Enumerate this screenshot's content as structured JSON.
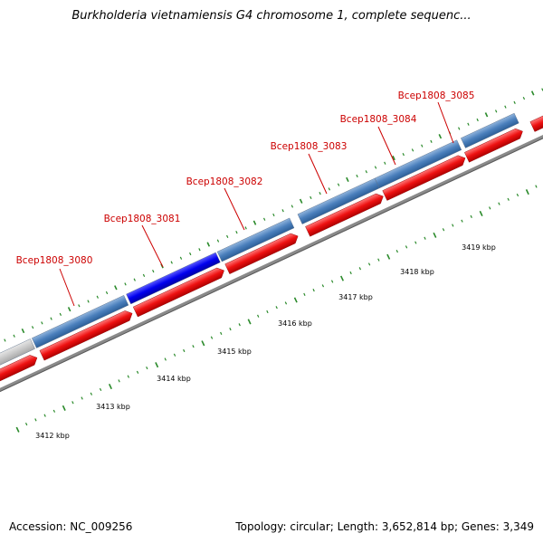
{
  "title": "Burkholderia vietnamiensis G4 chromosome 1, complete sequenc...",
  "footer": {
    "accession": "Accession: NC_009256",
    "summary": "Topology: circular; Length: 3,652,814 bp; Genes: 3,349"
  },
  "colors": {
    "gene_default": "#4a7fbc",
    "gene_selected": "#0000ee",
    "gene_unlabeled": "#c8c8c8",
    "cds": "#ee1111",
    "backbone": "#8a8a8a",
    "ticks": "#2a8a2a",
    "label": "#cc0000"
  },
  "genes": [
    {
      "label": "Bcep1808_3080"
    },
    {
      "label": "Bcep1808_3081"
    },
    {
      "label": "Bcep1808_3082"
    },
    {
      "label": "Bcep1808_3083"
    },
    {
      "label": "Bcep1808_3084"
    },
    {
      "label": "Bcep1808_3085"
    }
  ],
  "kbp_labels": [
    "3412 kbp",
    "3413 kbp",
    "3414 kbp",
    "3415 kbp",
    "3416 kbp",
    "3417 kbp",
    "3418 kbp",
    "3419 kbp"
  ]
}
